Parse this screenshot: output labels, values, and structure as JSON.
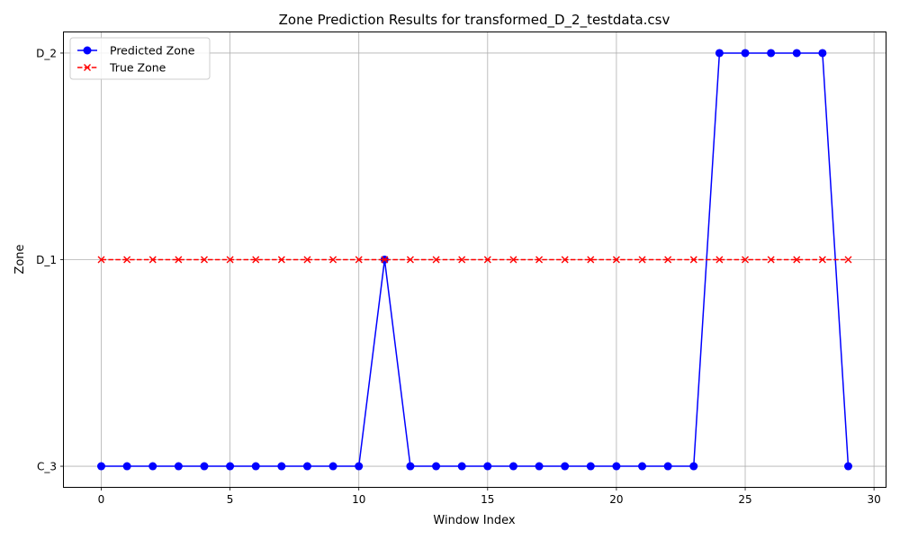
{
  "chart_data": {
    "type": "line",
    "title": "Zone Prediction Results for transformed_D_2_testdata.csv",
    "xlabel": "Window Index",
    "ylabel": "Zone",
    "x": [
      0,
      1,
      2,
      3,
      4,
      5,
      6,
      7,
      8,
      9,
      10,
      11,
      12,
      13,
      14,
      15,
      16,
      17,
      18,
      19,
      20,
      21,
      22,
      23,
      24,
      25,
      26,
      27,
      28,
      29
    ],
    "xlim": [
      -1.45,
      30.45
    ],
    "xticks": [
      0,
      5,
      10,
      15,
      20,
      25,
      30
    ],
    "xtick_labels": [
      "0",
      "5",
      "10",
      "15",
      "20",
      "25",
      "30"
    ],
    "y_categories": [
      "C_3",
      "D_1",
      "D_2"
    ],
    "ylim": [
      -0.1,
      2.1
    ],
    "grid": true,
    "legend_position": "top-left",
    "series": [
      {
        "name": "Predicted Zone",
        "color": "#0000ff",
        "line_style": "solid",
        "marker": "circle",
        "values": [
          "C_3",
          "C_3",
          "C_3",
          "C_3",
          "C_3",
          "C_3",
          "C_3",
          "C_3",
          "C_3",
          "C_3",
          "C_3",
          "D_1",
          "C_3",
          "C_3",
          "C_3",
          "C_3",
          "C_3",
          "C_3",
          "C_3",
          "C_3",
          "C_3",
          "C_3",
          "C_3",
          "C_3",
          "D_2",
          "D_2",
          "D_2",
          "D_2",
          "D_2",
          "C_3"
        ]
      },
      {
        "name": "True Zone",
        "color": "#ff0000",
        "line_style": "dashed",
        "marker": "x",
        "values": [
          "D_1",
          "D_1",
          "D_1",
          "D_1",
          "D_1",
          "D_1",
          "D_1",
          "D_1",
          "D_1",
          "D_1",
          "D_1",
          "D_1",
          "D_1",
          "D_1",
          "D_1",
          "D_1",
          "D_1",
          "D_1",
          "D_1",
          "D_1",
          "D_1",
          "D_1",
          "D_1",
          "D_1",
          "D_1",
          "D_1",
          "D_1",
          "D_1",
          "D_1",
          "D_1"
        ]
      }
    ]
  }
}
